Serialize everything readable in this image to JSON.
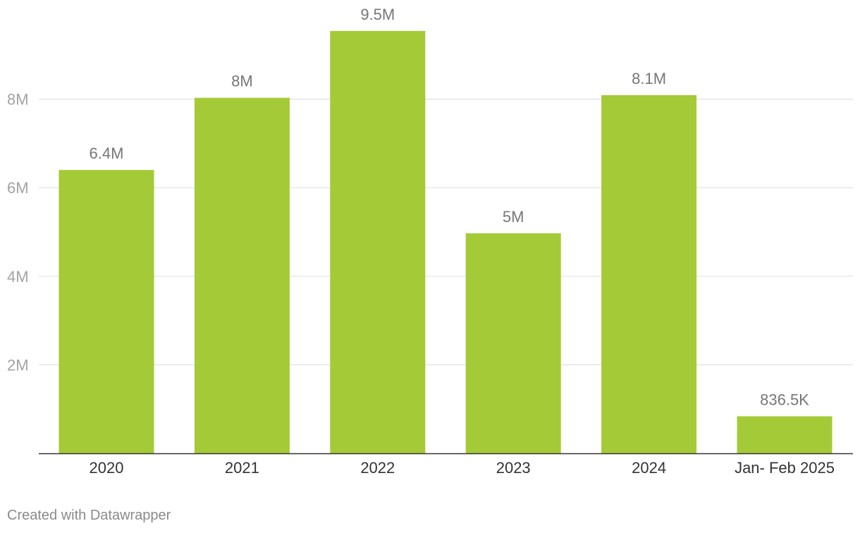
{
  "chart_data": {
    "type": "bar",
    "title": "",
    "xlabel": "",
    "ylabel": "",
    "categories": [
      "2020",
      "2021",
      "2022",
      "2023",
      "2024",
      "Jan- Feb 2025"
    ],
    "values": [
      6400000,
      8030000,
      9540000,
      4970000,
      8090000,
      836500
    ],
    "value_labels": [
      "6.4M",
      "8M",
      "9.5M",
      "5M",
      "8.1M",
      "836.5K"
    ],
    "yticks": [
      2000000,
      4000000,
      6000000,
      8000000
    ],
    "ytick_labels": [
      "2M",
      "4M",
      "6M",
      "8M"
    ],
    "ylim": [
      0,
      10000000
    ],
    "grid": true,
    "legend": "none",
    "bar_color": "#a5ca37",
    "gridline_color": "#e0e0e0",
    "axis_color": "#333333"
  },
  "footer": {
    "credit": "Created with Datawrapper"
  }
}
